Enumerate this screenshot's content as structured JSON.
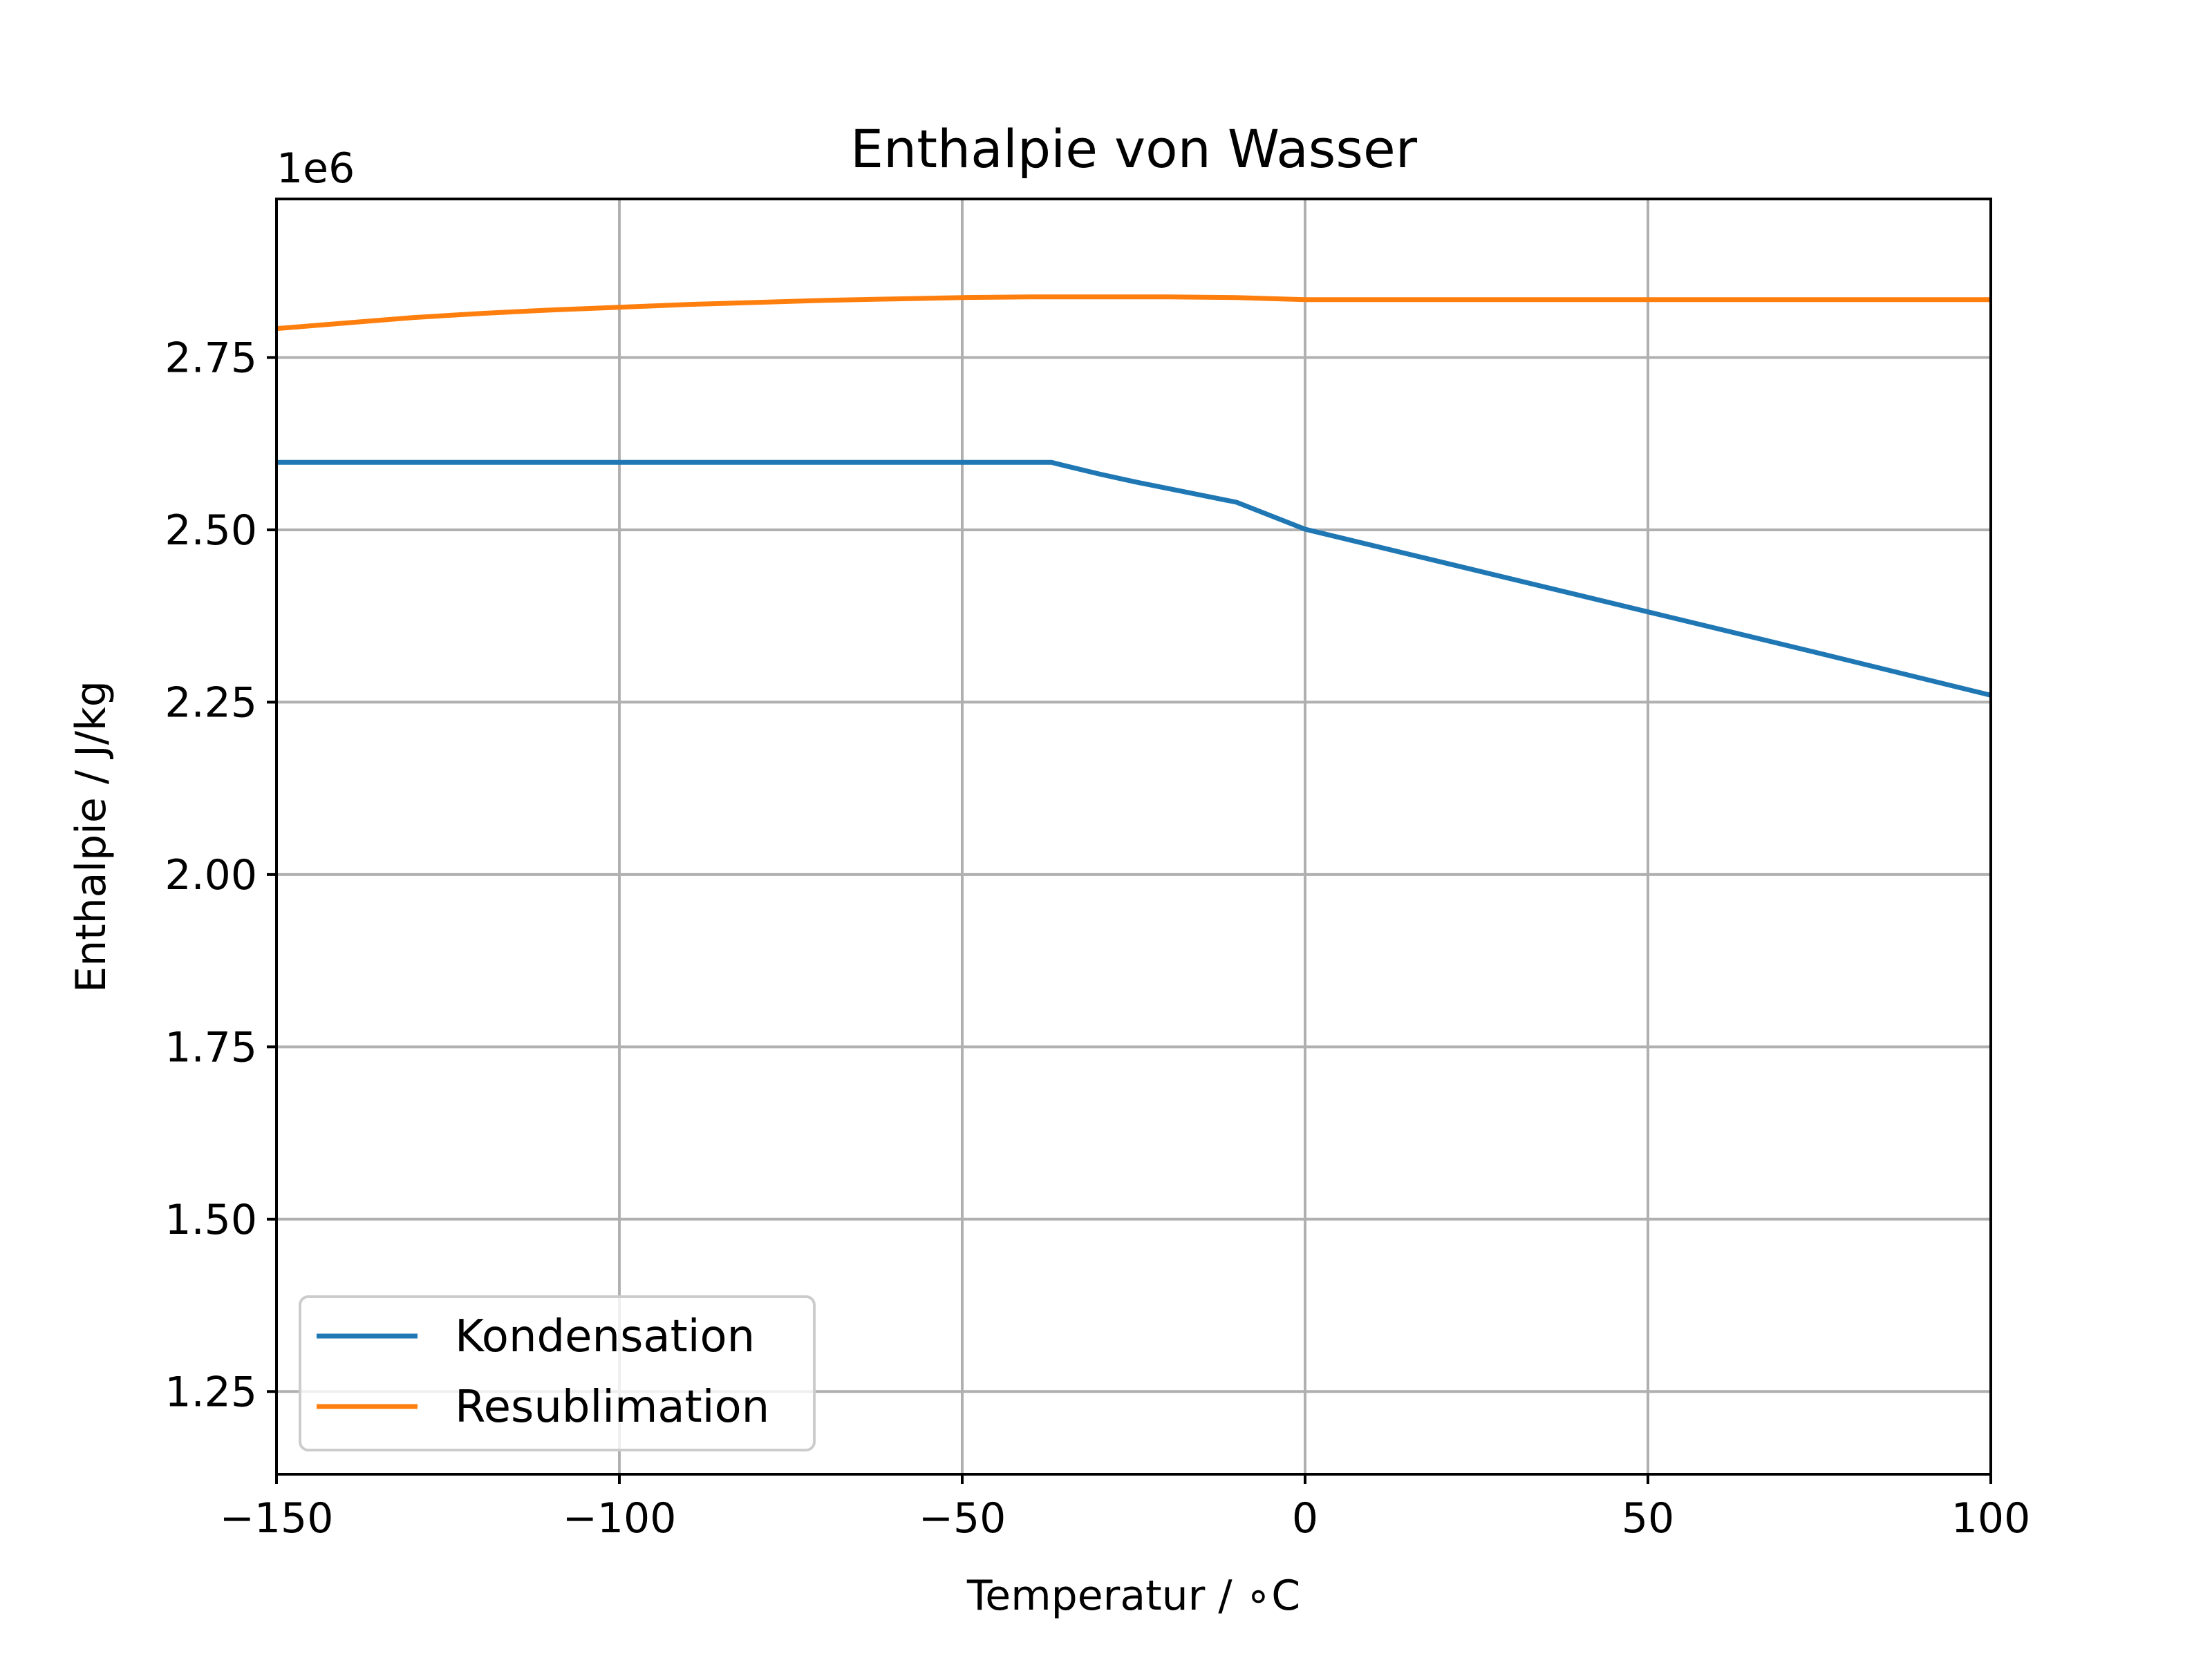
{
  "chart_data": {
    "type": "line",
    "title": "Enthalpie von Wasser",
    "xlabel": "Temperatur / ∘C",
    "ylabel": "Enthalpie / J/kg",
    "y_offset_label": "1e6",
    "xlim": [
      -150,
      100
    ],
    "ylim": [
      1.13,
      2.98
    ],
    "y_scale_factor": 1000000,
    "x_ticks": [
      -150,
      -100,
      -50,
      0,
      50,
      100
    ],
    "x_tick_labels": [
      "−150",
      "−100",
      "−50",
      "0",
      "50",
      "100"
    ],
    "y_ticks": [
      1.25,
      1.5,
      1.75,
      2.0,
      2.25,
      2.5,
      2.75
    ],
    "y_tick_labels": [
      "1.25",
      "1.50",
      "1.75",
      "2.00",
      "2.25",
      "2.50",
      "2.75"
    ],
    "grid": true,
    "legend_position": "lower-left",
    "series": [
      {
        "name": "Kondensation",
        "color": "#1f77b4",
        "x": [
          -150,
          -100,
          -50,
          -37,
          -35,
          -30,
          -25,
          -20,
          -10,
          0,
          25,
          50,
          75,
          100
        ],
        "y": [
          2.598,
          2.598,
          2.598,
          2.598,
          2.593,
          2.581,
          2.57,
          2.56,
          2.54,
          2.501,
          2.441,
          2.381,
          2.321,
          2.26
        ]
      },
      {
        "name": "Resublimation",
        "color": "#ff7f0e",
        "x": [
          -150,
          -140,
          -130,
          -120,
          -110,
          -100,
          -90,
          -80,
          -70,
          -60,
          -50,
          -40,
          -30,
          -20,
          -10,
          0,
          25,
          50,
          75,
          100
        ],
        "y": [
          2.792,
          2.8,
          2.808,
          2.814,
          2.819,
          2.823,
          2.827,
          2.83,
          2.833,
          2.835,
          2.837,
          2.838,
          2.838,
          2.838,
          2.837,
          2.834,
          2.834,
          2.834,
          2.834,
          2.834
        ]
      }
    ]
  }
}
